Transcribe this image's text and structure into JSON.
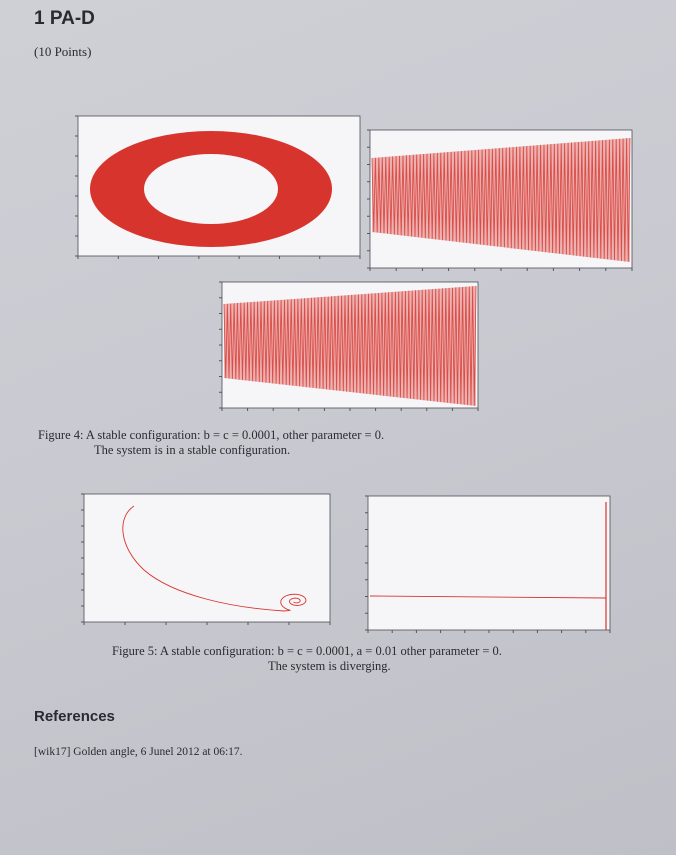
{
  "section": {
    "title": "1 PA-D",
    "points": "(10 Points)"
  },
  "figure4": {
    "caption_line1": "Figure 4: A stable configuration: b = c = 0.0001, other parameter = 0.",
    "caption_line2": "The system is in a stable configuration.",
    "color": "#d8342e"
  },
  "figure5": {
    "caption_line1": "Figure 5: A stable configuration: b = c = 0.0001, a = 0.01 other parameter = 0.",
    "caption_line2": "The system is diverging.",
    "color": "#d8342e"
  },
  "references": {
    "heading": "References",
    "item": "[wik17] Golden angle, 6 Junel 2012 at 06:17."
  },
  "chart_data": [
    {
      "type": "scatter",
      "description_key": "fig4-ring",
      "shape": "annulus",
      "outer_radius": 1.0,
      "inner_radius": 0.55,
      "color": "#d8342e"
    },
    {
      "type": "line",
      "description_key": "fig4-oscillation-1",
      "envelope_start": [
        -1.0,
        1.0
      ],
      "envelope_end": [
        -0.4,
        0.4
      ],
      "color": "#d8342e"
    },
    {
      "type": "line",
      "description_key": "fig4-oscillation-2",
      "envelope_start": [
        -1.0,
        1.0
      ],
      "envelope_end": [
        -0.4,
        0.4
      ],
      "color": "#d8342e"
    },
    {
      "type": "line",
      "description_key": "fig5-spiral",
      "shape": "spiral",
      "color": "#d8342e"
    },
    {
      "type": "line",
      "description_key": "fig5-diverging",
      "shape": "flat-then-spike",
      "color": "#d8342e"
    }
  ]
}
